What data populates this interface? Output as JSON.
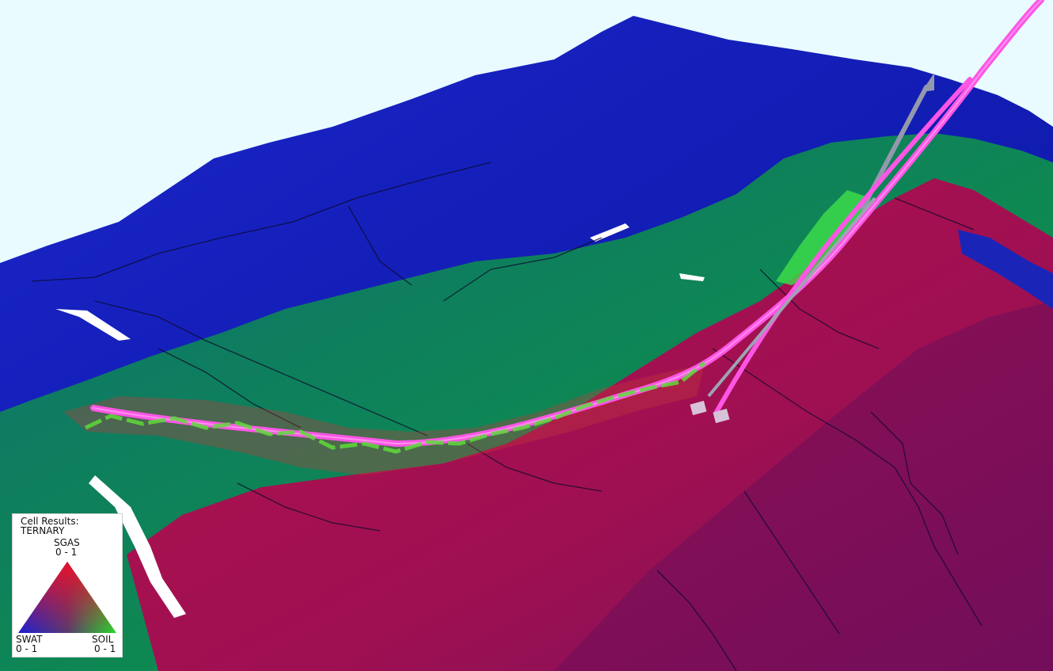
{
  "viewer": {
    "legend": {
      "title_line1": "Cell Results:",
      "title_line2": "TERNARY",
      "top_label": "SGAS",
      "top_range": "0 - 1",
      "left_label": "SWAT",
      "left_range": "0 - 1",
      "right_label": "SOIL",
      "right_range": "0 - 1"
    },
    "colors": {
      "background": "#e9fbff",
      "water": "#1416b8",
      "oil": "#0f8a4e",
      "gas": "#a0124a",
      "well_path": "#ff55e6",
      "well_arrow": "#8f94aa",
      "completion": "#5fd93c"
    }
  }
}
